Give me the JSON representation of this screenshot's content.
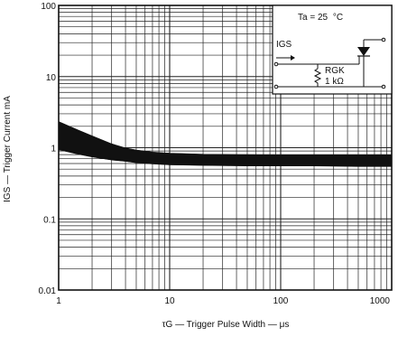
{
  "chart_data": {
    "type": "line",
    "xlabel": "τG — Trigger Pulse Width — μs",
    "ylabel": "IGS — Trigger Current  mA",
    "x_scale": "log",
    "y_scale": "log",
    "xlim": [
      1,
      1000
    ],
    "ylim": [
      0.01,
      100
    ],
    "x_ticks": [
      "1",
      "10",
      "100",
      "1000"
    ],
    "y_ticks": [
      "100",
      "10",
      "1",
      "0.1",
      "0.01"
    ],
    "grid": true,
    "series": [
      {
        "kind": "band-upper",
        "x": [
          1,
          1.5,
          2,
          3,
          4,
          5,
          7,
          10,
          20,
          50,
          100,
          200,
          500,
          1000
        ],
        "y": [
          2.3,
          1.75,
          1.45,
          1.12,
          0.98,
          0.92,
          0.86,
          0.83,
          0.8,
          0.79,
          0.78,
          0.78,
          0.78,
          0.78
        ]
      },
      {
        "kind": "band-lower",
        "x": [
          1,
          1.5,
          2,
          3,
          4,
          5,
          7,
          10,
          20,
          50,
          100,
          200,
          500,
          1000
        ],
        "y": [
          0.95,
          0.82,
          0.75,
          0.68,
          0.65,
          0.62,
          0.6,
          0.58,
          0.57,
          0.56,
          0.56,
          0.56,
          0.55,
          0.55
        ]
      }
    ],
    "band_color": "#111111",
    "inset": {
      "condition_prefix": "Ta = 25",
      "condition_unit": "°C",
      "current_label": "IGS",
      "resistor_label": "RGK",
      "resistor_value": "1  kΩ"
    }
  }
}
